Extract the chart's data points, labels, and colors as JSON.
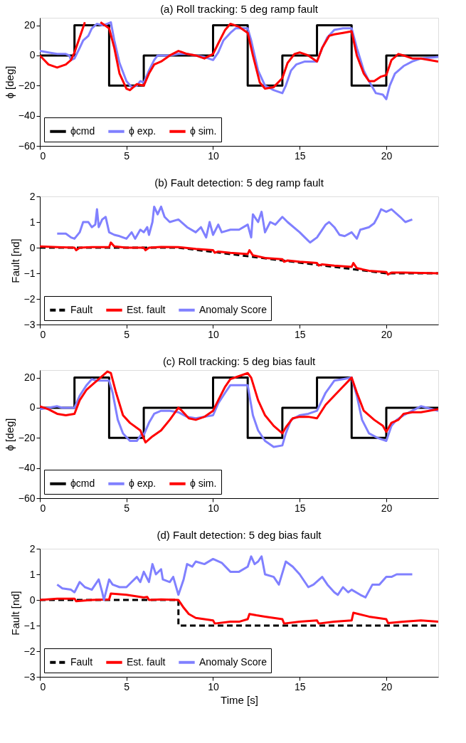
{
  "chart_data": [
    {
      "type": "line",
      "title": "(a) Roll tracking: 5 deg ramp fault",
      "ylabel": "ϕ [deg]",
      "xlim": [
        0,
        23
      ],
      "xticks": [
        0,
        5,
        10,
        15,
        20
      ],
      "ylim": [
        -60,
        25
      ],
      "yticks": [
        -60,
        -40,
        -20,
        0,
        20
      ],
      "grid": false,
      "legend": "bottom left",
      "line_style": "solid",
      "series": [
        {
          "name": "ϕcmd",
          "type": "step",
          "color": "#000000",
          "x": [
            0,
            2,
            4,
            6,
            10,
            12,
            14,
            16,
            18,
            20,
            23
          ],
          "values": [
            0,
            20,
            -20,
            0,
            20,
            -20,
            0,
            20,
            -20,
            0,
            0
          ]
        },
        {
          "name": "ϕ exp.",
          "color": "#8080ff",
          "x": [
            0,
            0.5,
            1,
            1.5,
            1.7,
            1.8,
            2.0,
            2.3,
            2.5,
            2.8,
            3.0,
            3.3,
            3.6,
            3.9,
            4.1,
            4.3,
            4.6,
            5.0,
            5.3,
            5.6,
            5.8,
            6.0,
            6.3,
            6.6,
            6.8,
            7.5,
            8,
            8.5,
            9,
            9.5,
            10,
            10.3,
            10.6,
            11,
            11.3,
            11.7,
            12.0,
            12.2,
            12.6,
            13,
            13.5,
            14,
            14.2,
            14.5,
            14.8,
            15.3,
            16,
            16.3,
            16.6,
            17,
            17.5,
            18,
            18.3,
            18.7,
            19,
            19.4,
            19.8,
            20,
            20.2,
            20.5,
            21,
            21.5,
            22,
            23
          ],
          "values": [
            3,
            2,
            1,
            1,
            0,
            -3,
            -2,
            5,
            10,
            13,
            18,
            21,
            20,
            21,
            22,
            10,
            -5,
            -17,
            -21,
            -20,
            -17,
            -18,
            -10,
            -3,
            0,
            0,
            1,
            1,
            0,
            -1,
            -3,
            2,
            10,
            15,
            18,
            18,
            18,
            10,
            -10,
            -20,
            -23,
            -25,
            -20,
            -10,
            -6,
            -4,
            -4,
            5,
            12,
            17,
            18,
            18,
            5,
            -10,
            -17,
            -25,
            -26,
            -29,
            -20,
            -12,
            -7,
            -4,
            -2,
            -1
          ]
        },
        {
          "name": "ϕ sim.",
          "color": "#ff0000",
          "x": [
            0,
            0.5,
            1,
            1.5,
            1.8,
            2.0,
            2.3,
            2.6,
            2.8,
            3.2,
            3.5,
            4,
            4.3,
            4.6,
            5,
            5.2,
            5.6,
            6,
            6.3,
            6.6,
            7.0,
            7.5,
            8,
            8.5,
            9.0,
            9.5,
            10,
            10.3,
            10.7,
            11,
            11.5,
            12,
            12.3,
            12.7,
            13,
            13.5,
            14,
            14.3,
            14.7,
            15,
            15.5,
            16,
            16.3,
            16.7,
            17,
            17.5,
            18,
            18.3,
            18.7,
            19,
            19.3,
            19.7,
            20,
            20.3,
            20.7,
            21,
            21.5,
            22,
            23
          ],
          "values": [
            0,
            -6,
            -8,
            -6,
            -3,
            2,
            12,
            22,
            null,
            null,
            22,
            18,
            5,
            -12,
            -22,
            -23,
            -19,
            -20,
            -12,
            -6,
            -4,
            0,
            3,
            1,
            0,
            -2,
            1,
            8,
            17,
            21,
            19,
            15,
            0,
            -18,
            -22,
            -21,
            -15,
            -5,
            1,
            2,
            0,
            -4,
            5,
            13,
            14,
            15,
            16,
            0,
            -12,
            -17,
            -17,
            -14,
            -13,
            -3,
            1,
            0,
            -2,
            -2,
            -4
          ]
        }
      ]
    },
    {
      "type": "line",
      "title": "(b) Fault detection: 5 deg ramp fault",
      "ylabel": "Fault [nd]",
      "xlim": [
        0,
        23
      ],
      "xticks": [
        0,
        5,
        10,
        15,
        20
      ],
      "ylim": [
        -3,
        2
      ],
      "yticks": [
        -3,
        -2,
        -1,
        0,
        1,
        2
      ],
      "grid": false,
      "legend": "bottom left",
      "line_style": "solid",
      "series": [
        {
          "name": "Fault",
          "color": "#000000",
          "line_style": "dashed",
          "x": [
            0,
            8,
            20,
            23
          ],
          "values": [
            0,
            0,
            -1,
            -1
          ]
        },
        {
          "name": "Est. fault",
          "color": "#ff0000",
          "x": [
            0,
            1,
            2,
            2.1,
            2.3,
            3,
            4,
            4.1,
            4.3,
            5,
            6,
            6.1,
            6.3,
            7,
            8,
            9,
            10,
            10.1,
            10.3,
            11,
            12,
            12.1,
            12.3,
            13,
            14,
            14.1,
            14.3,
            15,
            16,
            16.1,
            16.3,
            17,
            18,
            18.1,
            18.3,
            19,
            20,
            20.1,
            20.3,
            21,
            23
          ],
          "values": [
            0.05,
            0.02,
            0,
            -0.1,
            0,
            0.02,
            0.02,
            0.2,
            0.05,
            0,
            0,
            -0.1,
            0,
            0.03,
            0.02,
            -0.05,
            -0.1,
            -0.2,
            -0.15,
            -0.2,
            -0.25,
            -0.1,
            -0.3,
            -0.4,
            -0.45,
            -0.55,
            -0.5,
            -0.55,
            -0.6,
            -0.7,
            -0.65,
            -0.7,
            -0.75,
            -0.6,
            -0.8,
            -0.9,
            -0.95,
            -1.05,
            -0.97,
            -0.97,
            -1.0
          ]
        },
        {
          "name": "Anomaly Score",
          "color": "#8080ff",
          "x": [
            1,
            1.5,
            1.8,
            2,
            2.3,
            2.5,
            2.8,
            3.0,
            3.2,
            3.3,
            3.4,
            3.6,
            3.8,
            4.0,
            4.3,
            4.6,
            5.0,
            5.3,
            5.5,
            5.8,
            6.0,
            6.2,
            6.3,
            6.5,
            6.6,
            6.8,
            7.0,
            7.2,
            7.5,
            8,
            8.5,
            9.0,
            9.3,
            9.6,
            9.8,
            10.0,
            10.3,
            10.5,
            11,
            11.5,
            12,
            12.2,
            12.3,
            12.6,
            12.8,
            13.0,
            13.3,
            13.6,
            14,
            14.3,
            15,
            15.3,
            15.6,
            16,
            16.5,
            16.7,
            17,
            17.3,
            17.6,
            18,
            18.3,
            18.5,
            19,
            19.3,
            19.5,
            19.7,
            20,
            20.3,
            20.8,
            21.1,
            21.5
          ],
          "values": [
            0.55,
            0.55,
            0.4,
            0.35,
            0.6,
            1.0,
            1.0,
            0.8,
            0.9,
            1.5,
            0.8,
            1.1,
            1.2,
            0.6,
            0.5,
            0.45,
            0.35,
            0.6,
            0.35,
            0.7,
            0.6,
            0.8,
            0.5,
            1.0,
            1.6,
            1.3,
            1.6,
            1.2,
            1.0,
            1.1,
            0.8,
            0.6,
            0.8,
            0.4,
            1.0,
            0.5,
            0.9,
            0.6,
            0.7,
            0.7,
            0.9,
            0.4,
            1.3,
            1.0,
            1.4,
            0.6,
            1.0,
            0.9,
            1.2,
            1.0,
            0.6,
            0.4,
            0.2,
            0.4,
            0.9,
            1.0,
            0.8,
            0.5,
            0.45,
            0.6,
            0.35,
            0.7,
            0.8,
            0.95,
            1.2,
            1.5,
            1.4,
            1.5,
            1.2,
            1.0,
            1.1
          ]
        }
      ]
    },
    {
      "type": "line",
      "title": "(c) Roll tracking: 5 deg bias fault",
      "ylabel": "ϕ [deg]",
      "xlim": [
        0,
        23
      ],
      "xticks": [
        0,
        5,
        10,
        15,
        20
      ],
      "ylim": [
        -60,
        25
      ],
      "yticks": [
        -60,
        -40,
        -20,
        0,
        20
      ],
      "grid": false,
      "legend": "bottom left",
      "line_style": "solid",
      "series": [
        {
          "name": "ϕcmd",
          "type": "step",
          "color": "#000000",
          "x": [
            0,
            2,
            4,
            6,
            10,
            12,
            14,
            16,
            18,
            20,
            23
          ],
          "values": [
            0,
            20,
            -20,
            0,
            20,
            -20,
            0,
            20,
            -20,
            0,
            0
          ]
        },
        {
          "name": "ϕ exp.",
          "color": "#8080ff",
          "x": [
            0,
            0.5,
            1,
            1.3,
            2,
            2.3,
            2.7,
            3,
            3.3,
            3.7,
            4,
            4.2,
            4.5,
            4.8,
            5.2,
            5.6,
            5.9,
            6.0,
            6.3,
            6.6,
            7,
            7.5,
            8,
            8.5,
            9,
            9.5,
            10,
            10.3,
            10.7,
            11,
            11.5,
            12,
            12.3,
            12.6,
            13,
            13.5,
            14,
            14.2,
            14.5,
            15,
            15.5,
            16,
            16.5,
            17,
            17.5,
            18,
            18.3,
            18.6,
            19,
            19.5,
            20,
            20.3,
            20.6,
            21,
            21.5,
            22,
            23
          ],
          "values": [
            -1,
            0,
            1,
            0,
            0,
            8,
            15,
            19,
            18,
            18,
            18,
            10,
            -8,
            -17,
            -22,
            -22,
            -17,
            -18,
            -10,
            -4,
            -2,
            -2,
            -3,
            -6,
            -7,
            -6,
            -5,
            3,
            10,
            15,
            15,
            15,
            -5,
            -15,
            -22,
            -26,
            -25,
            -17,
            -8,
            -5,
            -4,
            -2,
            10,
            18,
            19,
            20,
            8,
            -8,
            -17,
            -20,
            -22,
            -12,
            -8,
            -5,
            -2,
            1,
            -2
          ]
        },
        {
          "name": "ϕ sim.",
          "color": "#ff0000",
          "x": [
            0,
            0.5,
            1,
            1.5,
            2,
            2.3,
            2.7,
            3,
            3.5,
            3.9,
            4.1,
            4.4,
            4.8,
            5.2,
            5.8,
            6.1,
            6.5,
            7,
            7.5,
            8,
            8.2,
            8.6,
            9,
            9.5,
            10,
            10.3,
            10.7,
            11,
            11.5,
            12,
            12.2,
            12.6,
            13,
            13.5,
            14,
            14.2,
            14.6,
            15,
            15.5,
            16,
            16.5,
            17,
            17.5,
            18,
            18.3,
            18.7,
            19.3,
            19.8,
            20,
            20.3,
            20.7,
            21,
            21.5,
            22,
            23
          ],
          "values": [
            1,
            -1,
            -4,
            -5,
            -4,
            5,
            12,
            15,
            20,
            24,
            23,
            10,
            -5,
            -10,
            -15,
            -23,
            -19,
            -15,
            -8,
            0,
            -2,
            -7,
            -8,
            -6,
            -2,
            5,
            14,
            19,
            21,
            23,
            20,
            5,
            -5,
            -12,
            -17,
            -13,
            -7,
            -6,
            -6,
            -7,
            2,
            8,
            14,
            20,
            10,
            -2,
            -8,
            -12,
            -16,
            -10,
            -8,
            -4,
            -3,
            -3,
            -1
          ]
        }
      ]
    },
    {
      "type": "line",
      "title": "(d) Fault detection: 5 deg bias fault",
      "xlabel": "Time [s]",
      "ylabel": "Fault [nd]",
      "xlim": [
        0,
        23
      ],
      "xticks": [
        0,
        5,
        10,
        15,
        20
      ],
      "ylim": [
        -3,
        2
      ],
      "yticks": [
        -3,
        -2,
        -1,
        0,
        1,
        2
      ],
      "grid": false,
      "legend": "bottom left",
      "line_style": "solid",
      "series": [
        {
          "name": "Fault",
          "color": "#000000",
          "line_style": "dashed",
          "x": [
            0,
            8,
            8,
            23
          ],
          "values": [
            0,
            0,
            -1,
            -1
          ]
        },
        {
          "name": "Est. fault",
          "color": "#ff0000",
          "x": [
            0,
            1,
            2,
            2.1,
            3,
            4,
            4.1,
            5,
            6,
            6.2,
            6.3,
            7,
            8,
            8.3,
            8.6,
            9,
            9.5,
            10,
            10.1,
            11,
            11.5,
            12,
            12.1,
            12.5,
            13,
            14,
            14.1,
            15,
            16,
            16.1,
            17,
            18,
            18.1,
            19,
            20,
            20.1,
            21,
            22,
            23
          ],
          "values": [
            0,
            0.05,
            0.05,
            -0.05,
            0,
            0.02,
            0.25,
            0.2,
            0.1,
            0.12,
            0,
            0.02,
            0,
            -0.3,
            -0.55,
            -0.7,
            -0.75,
            -0.8,
            -0.92,
            -0.85,
            -0.85,
            -0.75,
            -0.55,
            -0.6,
            -0.65,
            -0.75,
            -0.92,
            -0.85,
            -0.8,
            -0.92,
            -0.85,
            -0.8,
            -0.5,
            -0.65,
            -0.75,
            -0.9,
            -0.85,
            -0.8,
            -0.85
          ]
        },
        {
          "name": "Anomaly Score",
          "color": "#8080ff",
          "x": [
            1,
            1.3,
            1.8,
            2,
            2.3,
            2.6,
            3,
            3.4,
            3.6,
            3.7,
            4,
            4.2,
            4.6,
            5,
            5.3,
            5.6,
            5.8,
            6.0,
            6.3,
            6.5,
            6.7,
            7.0,
            7.1,
            7.5,
            7.7,
            8,
            8.3,
            8.5,
            8.8,
            9.0,
            9.5,
            10,
            10.5,
            11,
            11.5,
            12,
            12.2,
            12.4,
            12.6,
            12.8,
            13,
            13.5,
            13.8,
            14.2,
            14.6,
            15,
            15.5,
            15.8,
            16.3,
            16.6,
            17,
            17.2,
            17.5,
            17.8,
            18,
            18.5,
            18.8,
            19.2,
            19.6,
            20,
            20.3,
            20.6,
            21,
            21.5
          ],
          "values": [
            0.6,
            0.45,
            0.4,
            0.3,
            0.7,
            0.5,
            0.4,
            0.8,
            0.3,
            0.0,
            0.8,
            0.6,
            0.5,
            0.5,
            0.7,
            0.9,
            0.7,
            1.1,
            0.7,
            1.4,
            1.0,
            1.2,
            0.8,
            0.7,
            0.9,
            0.2,
            0.8,
            1.4,
            1.3,
            1.5,
            1.4,
            1.6,
            1.45,
            1.1,
            1.1,
            1.3,
            1.7,
            1.4,
            1.5,
            1.7,
            1.0,
            0.9,
            0.6,
            1.5,
            1.3,
            1.0,
            0.5,
            0.6,
            0.9,
            0.6,
            0.3,
            0.2,
            0.5,
            0.3,
            0.4,
            0.2,
            0.1,
            0.6,
            0.6,
            0.9,
            0.9,
            1.0,
            1.0,
            1.0
          ]
        }
      ]
    }
  ]
}
